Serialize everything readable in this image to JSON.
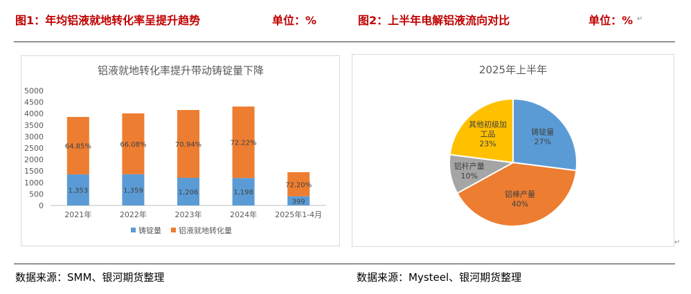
{
  "header": {
    "fig1_title": "图1：年均铝液就地转化率呈提升趋势",
    "fig1_unit": "单位：%",
    "fig2_title": "图2：上半年电解铝液流向对比",
    "fig2_unit": "单位：%"
  },
  "footer": {
    "source1": "数据来源：SMM、银河期货整理",
    "source2": "数据来源：Mysteel、银河期货整理"
  },
  "colors": {
    "bar_blue": "#5b9bd5",
    "bar_orange": "#ed7d31",
    "pie_gray": "#a5a5a5",
    "pie_gold": "#ffc000",
    "title_red": "#c00000"
  },
  "chart_data": [
    {
      "type": "bar",
      "stacked": true,
      "title": "铝液就地转化率提升带动铸锭量下降",
      "categories": [
        "2021年",
        "2022年",
        "2023年",
        "2024年",
        "2025年1-4月"
      ],
      "ylim": [
        0,
        5000
      ],
      "yticks": [
        0,
        500,
        1000,
        1500,
        2000,
        2500,
        3000,
        3500,
        4000,
        4500,
        5000
      ],
      "legend_position": "bottom",
      "grid": false,
      "series": [
        {
          "name": "铸锭量",
          "color": "#5b9bd5",
          "values": [
            1353,
            1359,
            1206,
            1198,
            399
          ],
          "labels": [
            "1,353",
            "1,359",
            "1,206",
            "1,198",
            "399"
          ]
        },
        {
          "name": "铝液就地转化量",
          "color": "#ed7d31",
          "values": [
            2500,
            2650,
            2950,
            3110,
            1050
          ],
          "labels": [
            "64.85%",
            "66.08%",
            "70.94%",
            "72.22%",
            "72.20%"
          ]
        }
      ]
    },
    {
      "type": "pie",
      "title": "2025年上半年",
      "slices": [
        {
          "label": "铸锭量",
          "value": 27,
          "pct_label": "27%",
          "color": "#5b9bd5"
        },
        {
          "label": "铝棒产量",
          "value": 40,
          "pct_label": "40%",
          "color": "#ed7d31"
        },
        {
          "label": "铝杆产量",
          "value": 10,
          "pct_label": "10%",
          "color": "#a5a5a5"
        },
        {
          "label": "其他初级加工品",
          "value": 23,
          "pct_label": "23%",
          "color": "#ffc000"
        }
      ]
    }
  ]
}
